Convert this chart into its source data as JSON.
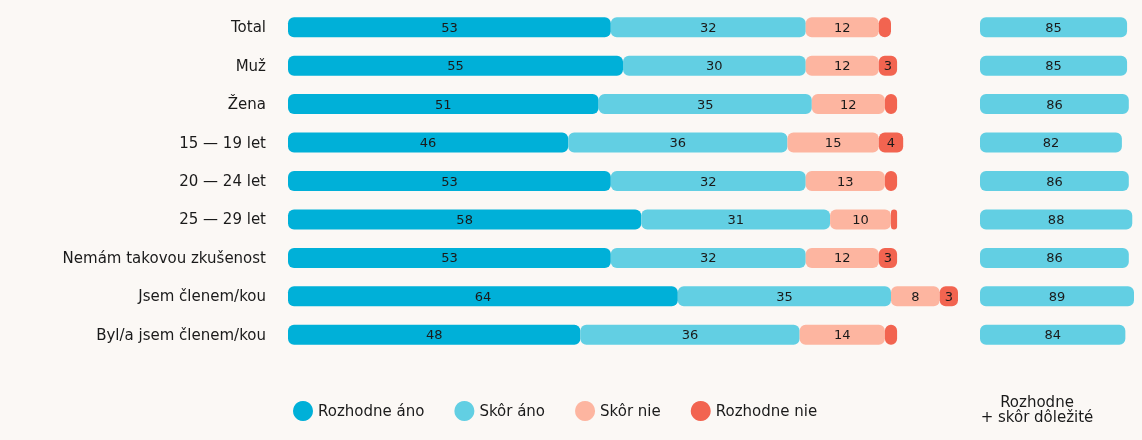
{
  "chart_data": [
    {
      "type": "bar",
      "orientation": "horizontal",
      "stacked": true,
      "categories": [
        "Total",
        "Muž",
        "Žena",
        "15 — 19 let",
        "20 — 24 let",
        "25 — 29 let",
        "Nemám takovou zkušenost",
        "Jsem členem/kou",
        "Byl/a jsem členem/kou"
      ],
      "legend": "bottom",
      "tick_labels": "y",
      "grid": false,
      "series": [
        {
          "name": "Rozhodne áno",
          "color": "#00b0d8",
          "values": [
            53,
            55,
            51,
            46,
            53,
            58,
            53,
            64,
            48
          ],
          "value_labels": [
            "53",
            "55",
            "51",
            "46",
            "53",
            "58",
            "53",
            "64",
            "48"
          ]
        },
        {
          "name": "Skôr áno",
          "color": "#62cfe3",
          "values": [
            32,
            30,
            35,
            36,
            32,
            31,
            32,
            35,
            36
          ],
          "value_labels": [
            "32",
            "30",
            "35",
            "36",
            "32",
            "31",
            "32",
            "35",
            "36"
          ]
        },
        {
          "name": "Skôr nie",
          "color": "#fdb5a0",
          "values": [
            12,
            12,
            12,
            15,
            13,
            10,
            12,
            8,
            14
          ],
          "value_labels": [
            "12",
            "12",
            "12",
            "15",
            "13",
            "10",
            "12",
            "8",
            "14"
          ]
        },
        {
          "name": "Rozhodne nie",
          "color": "#f26450",
          "values": [
            2,
            3,
            2,
            4,
            2,
            1,
            3,
            3,
            2
          ],
          "value_labels": [
            null,
            "3",
            null,
            "4",
            null,
            null,
            "3",
            "3",
            null
          ]
        }
      ]
    },
    {
      "type": "bar",
      "orientation": "horizontal",
      "xlabel": "Rozhodne\n+ skôr dôležité",
      "categories": [
        null,
        null,
        null,
        null,
        null,
        null,
        null,
        null,
        null
      ],
      "tick_labels": false,
      "grid": false,
      "data_labels": true,
      "series": [
        {
          "color": "#62cfe3",
          "values": [
            85,
            85,
            86,
            82,
            86,
            88,
            86,
            89,
            84
          ]
        }
      ]
    }
  ]
}
